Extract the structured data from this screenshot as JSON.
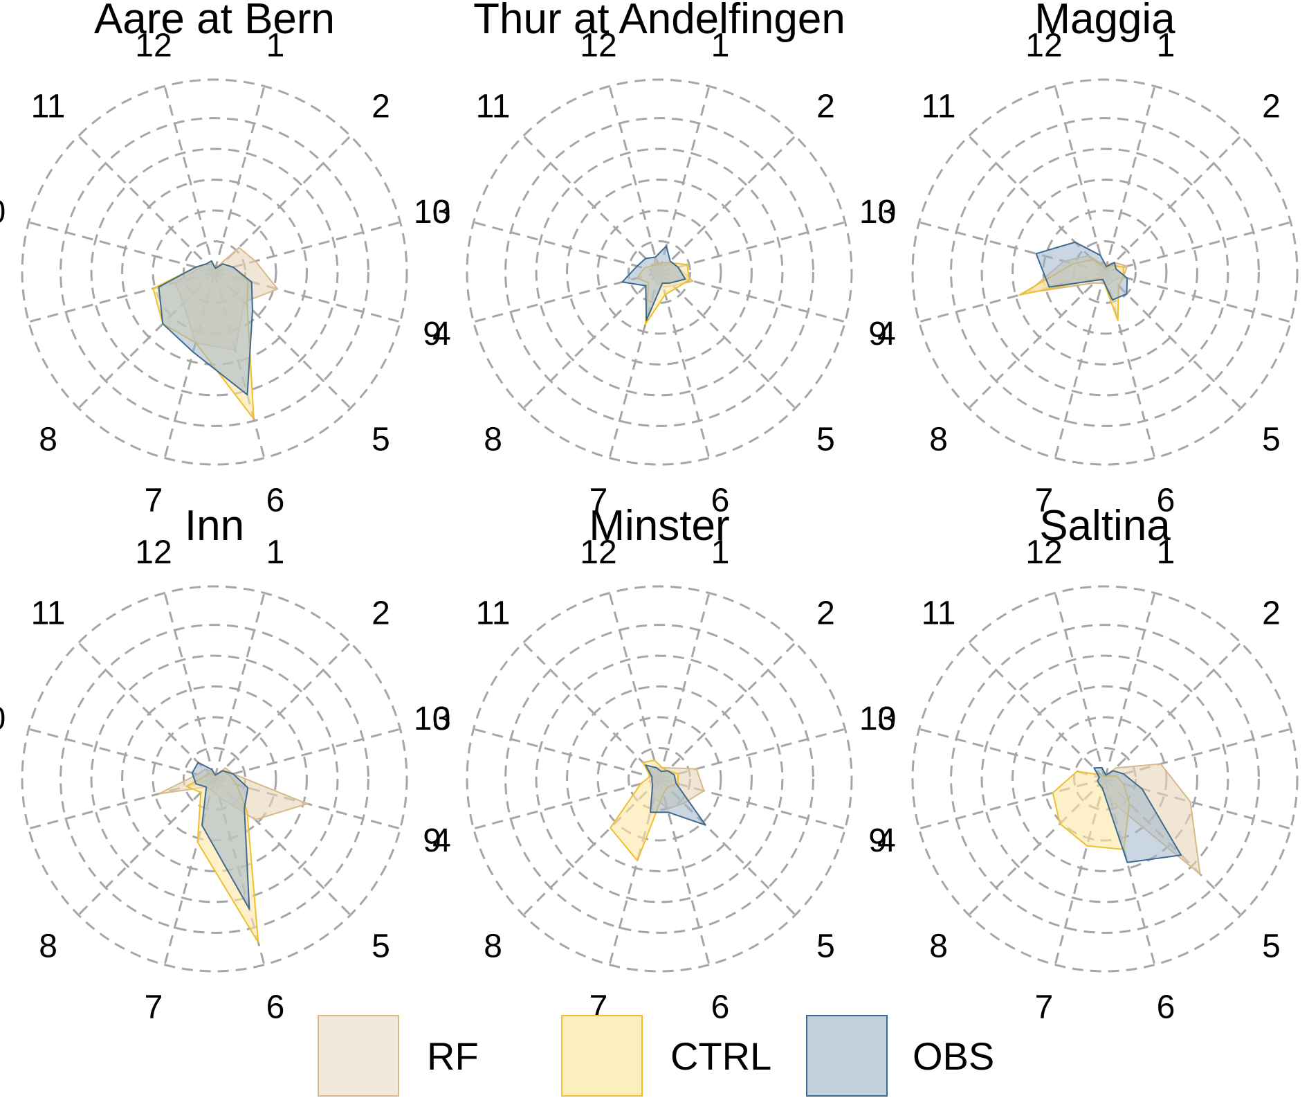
{
  "chart_data": {
    "type": "radar",
    "axis_labels": [
      "1",
      "2",
      "3",
      "4",
      "5",
      "6",
      "7",
      "8",
      "9",
      "10",
      "11",
      "12"
    ],
    "rmax": 1.0,
    "grid_rings": [
      0.16,
      0.32,
      0.48,
      0.64,
      0.8,
      1.0
    ],
    "grid": true,
    "legend_position": "bottom",
    "series_styles": [
      {
        "name": "RF",
        "fill": "#e8d5b7",
        "stroke": "#d9b98a"
      },
      {
        "name": "CTRL",
        "fill": "#fde7a6",
        "stroke": "#efbf2d"
      },
      {
        "name": "OBS",
        "fill": "#9fb5c8",
        "stroke": "#3e6a91"
      }
    ],
    "panels": [
      {
        "title": "Aare at Bern",
        "series": [
          {
            "name": "RF",
            "values": [
              0.02,
              0.18,
              0.22,
              0.34,
              0.22,
              0.42,
              0.38,
              0.23,
              0.21,
              0.08,
              0.06,
              0.04
            ]
          },
          {
            "name": "CTRL",
            "values": [
              0.02,
              0.06,
              0.1,
              0.18,
              0.24,
              0.79,
              0.38,
              0.38,
              0.33,
              0.1,
              0.06,
              0.04
            ]
          },
          {
            "name": "OBS",
            "values": [
              0.02,
              0.06,
              0.1,
              0.2,
              0.28,
              0.66,
              0.43,
              0.38,
              0.3,
              0.1,
              0.06,
              0.06
            ]
          }
        ]
      },
      {
        "title": "Thur at Andelfingen",
        "series": [
          {
            "name": "RF",
            "values": [
              0.03,
              0.06,
              0.1,
              0.18,
              0.1,
              0.08,
              0.06,
              0.04,
              0.04,
              0.05,
              0.04,
              0.08
            ]
          },
          {
            "name": "CTRL",
            "values": [
              0.05,
              0.07,
              0.15,
              0.16,
              0.12,
              0.12,
              0.28,
              0.08,
              0.12,
              0.08,
              0.05,
              0.04
            ]
          },
          {
            "name": "OBS",
            "values": [
              0.14,
              0.08,
              0.1,
              0.14,
              0.08,
              0.06,
              0.26,
              0.1,
              0.2,
              0.12,
              0.1,
              0.08
            ]
          }
        ]
      },
      {
        "title": "Maggia",
        "series": [
          {
            "name": "RF",
            "values": [
              0.04,
              0.07,
              0.12,
              0.1,
              0.06,
              0.07,
              0.06,
              0.08,
              0.42,
              0.22,
              0.12,
              0.04
            ]
          },
          {
            "name": "CTRL",
            "values": [
              0.02,
              0.05,
              0.1,
              0.1,
              0.1,
              0.26,
              0.04,
              0.05,
              0.46,
              0.17,
              0.09,
              0.03
            ]
          },
          {
            "name": "OBS",
            "values": [
              0.03,
              0.07,
              0.06,
              0.12,
              0.16,
              0.15,
              0.04,
              0.06,
              0.3,
              0.37,
              0.22,
              0.09
            ]
          }
        ]
      },
      {
        "title": "Inn",
        "series": [
          {
            "name": "RF",
            "values": [
              0.02,
              0.08,
              0.1,
              0.5,
              0.3,
              0.1,
              0.06,
              0.06,
              0.3,
              0.09,
              0.07,
              0.04
            ]
          },
          {
            "name": "CTRL",
            "values": [
              0.02,
              0.06,
              0.08,
              0.12,
              0.24,
              0.88,
              0.34,
              0.1,
              0.15,
              0.05,
              0.04,
              0.02
            ]
          },
          {
            "name": "OBS",
            "values": [
              0.02,
              0.06,
              0.1,
              0.18,
              0.22,
              0.7,
              0.25,
              0.06,
              0.1,
              0.12,
              0.12,
              0.05
            ]
          }
        ]
      },
      {
        "title": "Minster",
        "series": [
          {
            "name": "RF",
            "values": [
              0.06,
              0.08,
              0.2,
              0.24,
              0.18,
              0.16,
              0.1,
              0.06,
              0.05,
              0.05,
              0.07,
              0.06
            ]
          },
          {
            "name": "CTRL",
            "values": [
              0.06,
              0.06,
              0.1,
              0.1,
              0.06,
              0.08,
              0.44,
              0.36,
              0.1,
              0.05,
              0.12,
              0.1
            ]
          },
          {
            "name": "OBS",
            "values": [
              0.04,
              0.06,
              0.08,
              0.09,
              0.34,
              0.18,
              0.18,
              0.05,
              0.04,
              0.04,
              0.1,
              0.06
            ]
          }
        ]
      },
      {
        "title": "Saltina",
        "series": [
          {
            "name": "RF",
            "values": [
              0.02,
              0.08,
              0.3,
              0.46,
              0.7,
              0.12,
              0.06,
              0.04,
              0.04,
              0.03,
              0.02,
              0.02
            ]
          },
          {
            "name": "CTRL",
            "values": [
              0.01,
              0.02,
              0.06,
              0.1,
              0.18,
              0.38,
              0.36,
              0.33,
              0.28,
              0.15,
              0.03,
              0.01
            ]
          },
          {
            "name": "OBS",
            "values": [
              0.02,
              0.06,
              0.1,
              0.2,
              0.56,
              0.45,
              0.05,
              0.04,
              0.04,
              0.03,
              0.08,
              0.06
            ]
          }
        ]
      }
    ]
  },
  "legend": {
    "items": [
      {
        "label": "RF"
      },
      {
        "label": "CTRL"
      },
      {
        "label": "OBS"
      }
    ]
  }
}
